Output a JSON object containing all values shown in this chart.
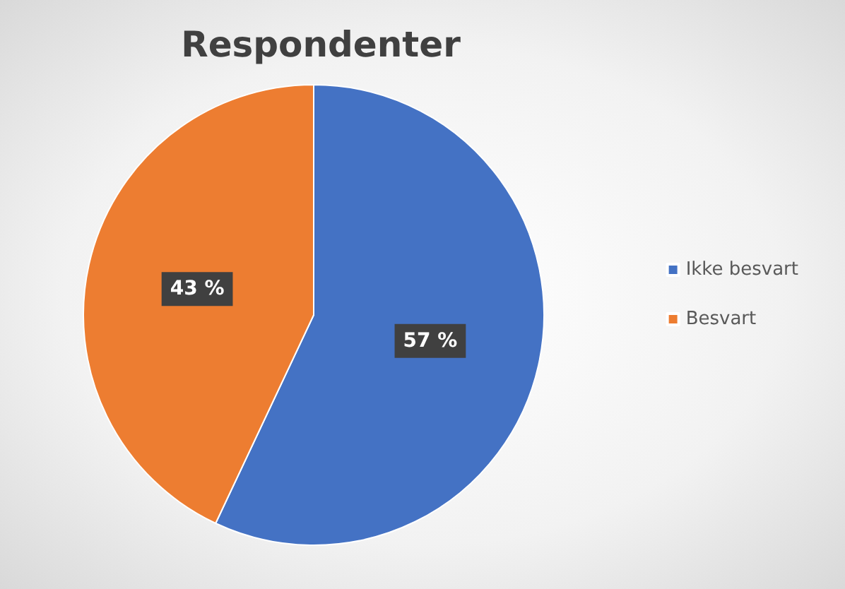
{
  "chart_data": {
    "type": "pie",
    "title": "Respondenter",
    "categories": [
      "Ikke besvart",
      "Besvart"
    ],
    "values": [
      57,
      43
    ],
    "colors": [
      "#4472c4",
      "#ed7d31"
    ],
    "value_labels": [
      "57 %",
      "43 %"
    ],
    "legend": "right"
  }
}
